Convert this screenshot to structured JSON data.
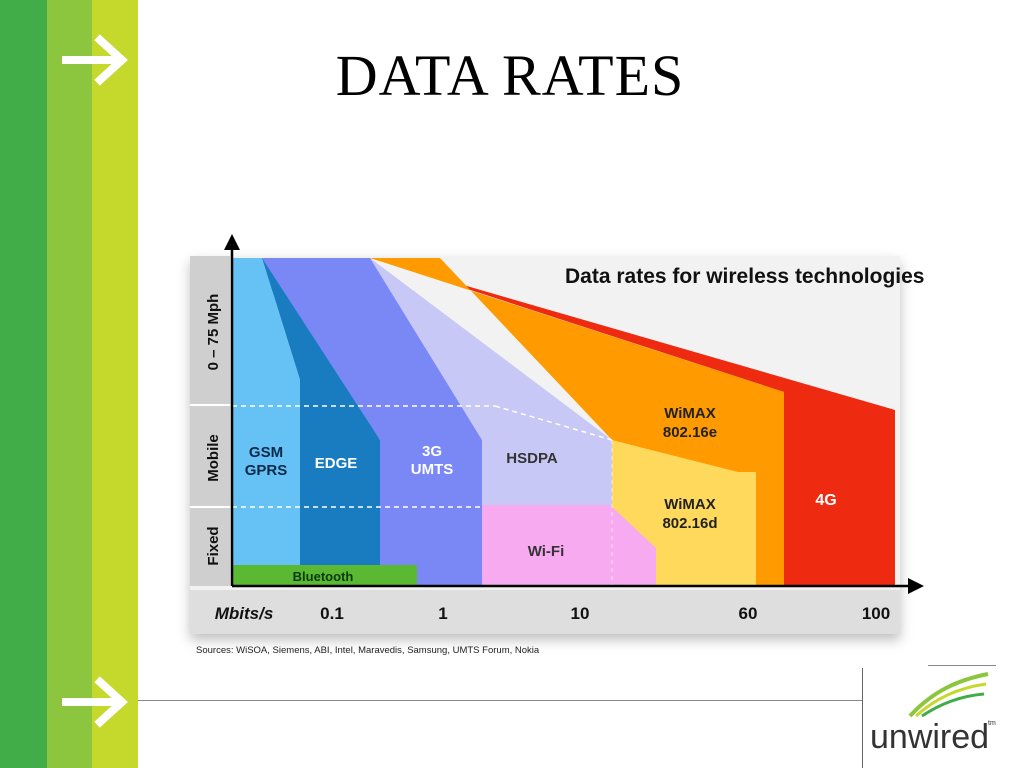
{
  "slide": {
    "title": "DATA RATES"
  },
  "chart": {
    "heading": "Data rates for wireless technologies",
    "sources": "Sources: WiSOA, Siemens, ABI, Intel, Maravedis, Samsung, UMTS Forum, Nokia",
    "y_bands": [
      "0 – 75 Mph",
      "Mobile",
      "Fixed"
    ],
    "x_axis": {
      "label": "Mbits/s",
      "ticks": [
        "0.1",
        "1",
        "10",
        "60",
        "100"
      ]
    },
    "technologies": {
      "gsm": [
        "GSM",
        "GPRS"
      ],
      "edge": "EDGE",
      "umts": [
        "3G",
        "UMTS"
      ],
      "hsdpa": "HSDPA",
      "wimax_e": [
        "WiMAX",
        "802.16e"
      ],
      "wimax_d": [
        "WiMAX",
        "802.16d"
      ],
      "wifi": "Wi-Fi",
      "bluetooth": "Bluetooth",
      "fourg": "4G"
    },
    "colors": {
      "gsm": "#66c2f5",
      "edge": "#1a7cc0",
      "umts": "#7a88f5",
      "hsdpa": "#c8c8f7",
      "wimax_e": "#ff9a00",
      "wimax_d": "#ffd95c",
      "wifi": "#f7aaf0",
      "bluetooth": "#5bb832",
      "fourg": "#ee2a10"
    }
  },
  "logo": {
    "text": "unwired",
    "mark": "tm"
  }
}
